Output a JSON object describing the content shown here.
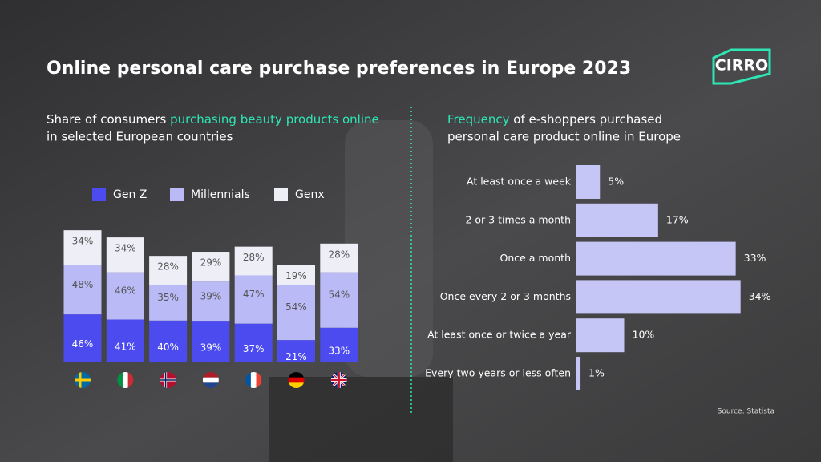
{
  "title": "Online personal care purchase preferences in Europe 2023",
  "logo": "CIRRO",
  "source": "Source: Statista",
  "chart_data": [
    {
      "type": "stacked-bar",
      "subtitle": {
        "line1": [
          "Share of consumers ",
          "purchasing beauty products online"
        ],
        "line2": "in selected European countries"
      },
      "categories": [
        null,
        null,
        null,
        null,
        null,
        null,
        null
      ],
      "legend": "top",
      "series": [
        {
          "name": "Gen Z",
          "color": "#4b4bf0",
          "values": [
            46,
            41,
            40,
            39,
            37,
            21,
            33
          ],
          "value_labels": [
            "46%",
            "41%",
            "40%",
            "39%",
            "37%",
            "21%",
            "33%"
          ]
        },
        {
          "name": "Millennials",
          "color": "#babaf6",
          "values": [
            48,
            46,
            35,
            39,
            47,
            54,
            54
          ],
          "value_labels": [
            "48%",
            "46%",
            "35%",
            "39%",
            "47%",
            "54%",
            "54%"
          ]
        },
        {
          "name": "Genx",
          "color": "#eeeef6",
          "values": [
            34,
            34,
            28,
            29,
            28,
            19,
            28
          ],
          "value_labels": [
            "34%",
            "34%",
            "28%",
            "29%",
            "28%",
            "19%",
            "28%"
          ]
        }
      ]
    },
    {
      "type": "horizontal-bar",
      "subtitle": {
        "line1": [
          "Frequency",
          " of e-shoppers purchased"
        ],
        "line2": "personal care product online in Europe"
      },
      "color": "#c6c6f6",
      "categories": [
        "At least once a week",
        "2 or 3 times a month",
        "Once a month",
        "Once every 2 or 3 months",
        "At least once or twice a year",
        "Every two years or less often"
      ],
      "values": [
        5,
        17,
        33,
        34,
        10,
        1
      ],
      "value_labels": [
        "5%",
        "17%",
        "33%",
        "34%",
        "10%",
        "1%"
      ]
    }
  ]
}
